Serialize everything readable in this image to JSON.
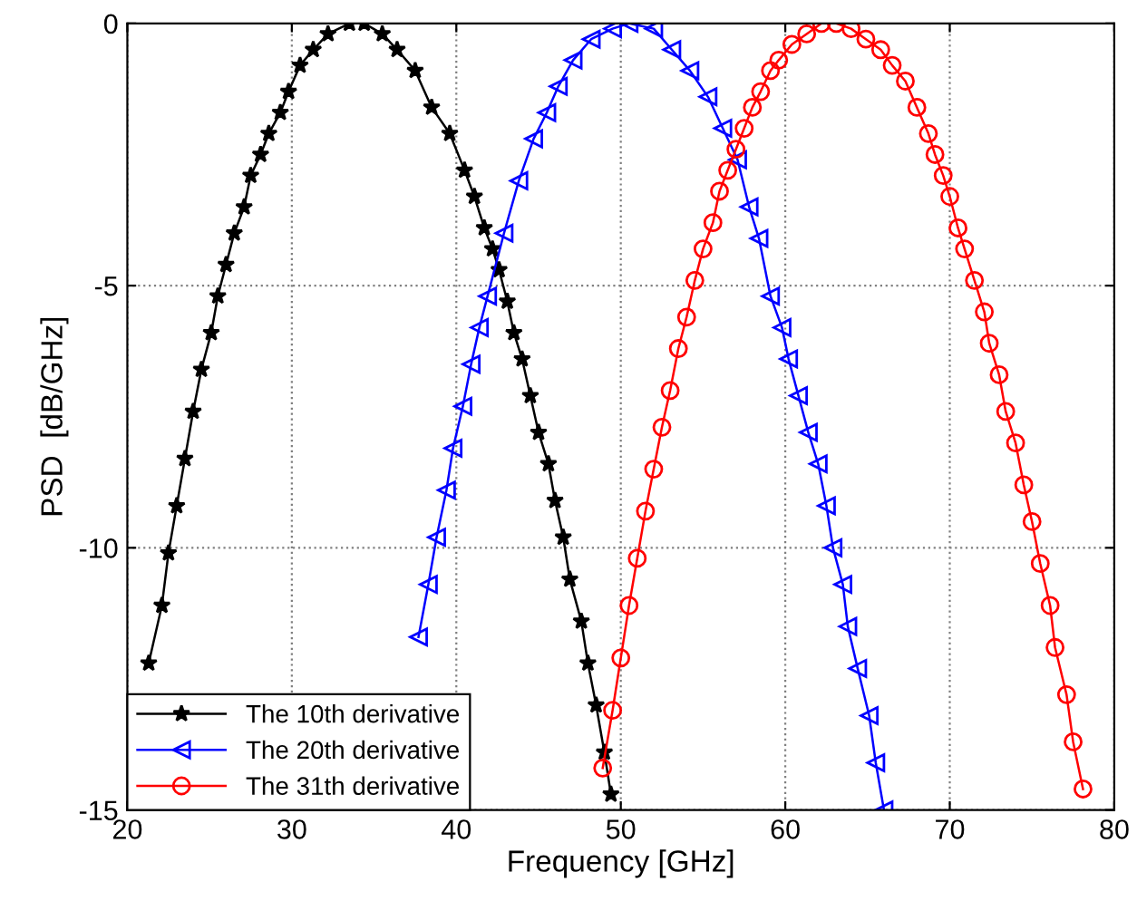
{
  "chart_data": {
    "type": "line",
    "xlabel": "Frequency [GHz]",
    "ylabel": "PSD  [dB/GHz]",
    "xlim": [
      20,
      80
    ],
    "xticks": [
      20,
      30,
      40,
      50,
      60,
      70,
      80
    ],
    "ylim": [
      -15,
      0
    ],
    "yticks": [
      -15,
      -10,
      -5,
      0
    ],
    "grid": true,
    "legend": "bottom left",
    "line_style": "solid",
    "series": [
      {
        "name": "The 10th derivative",
        "color": "#000000",
        "marker": "star",
        "x": [
          21.3,
          22.1,
          22.5,
          23.0,
          23.5,
          24.0,
          24.5,
          25.1,
          25.5,
          26.0,
          26.5,
          27.1,
          27.5,
          28.1,
          28.6,
          29.3,
          29.8,
          30.5,
          31.3,
          32.2,
          33.5,
          34.4,
          35.5,
          36.4,
          37.5,
          38.5,
          39.6,
          40.5,
          41.1,
          41.7,
          42.2,
          42.6,
          43.1,
          43.5,
          44.0,
          44.5,
          45.0,
          45.6,
          46.0,
          46.5,
          46.9,
          47.6,
          48.0,
          48.5,
          49.0,
          49.4
        ],
        "values": [
          -12.2,
          -11.1,
          -10.1,
          -9.2,
          -8.3,
          -7.4,
          -6.6,
          -5.9,
          -5.2,
          -4.6,
          -4.0,
          -3.5,
          -2.9,
          -2.5,
          -2.1,
          -1.7,
          -1.3,
          -0.8,
          -0.5,
          -0.2,
          0,
          0,
          -0.2,
          -0.5,
          -0.9,
          -1.6,
          -2.1,
          -2.8,
          -3.3,
          -3.9,
          -4.3,
          -4.7,
          -5.3,
          -5.9,
          -6.4,
          -7.1,
          -7.8,
          -8.4,
          -9.1,
          -9.8,
          -10.6,
          -11.4,
          -12.2,
          -13.0,
          -13.9,
          -14.7
        ]
      },
      {
        "name": "The 20th derivative",
        "color": "#0000ff",
        "marker": "triangle",
        "x": [
          37.7,
          38.3,
          38.8,
          39.4,
          39.8,
          40.4,
          40.9,
          41.4,
          41.9,
          42.9,
          43.8,
          44.7,
          45.5,
          46.2,
          47.1,
          48.2,
          49.5,
          50.5,
          52.0,
          53.1,
          54.2,
          55.3,
          56.2,
          57.1,
          57.8,
          58.4,
          59.1,
          59.8,
          60.2,
          60.8,
          61.4,
          62.0,
          62.5,
          62.9,
          63.5,
          63.8,
          64.4,
          65.1,
          65.5,
          66.0
        ],
        "values": [
          -11.7,
          -10.7,
          -9.8,
          -8.9,
          -8.1,
          -7.3,
          -6.5,
          -5.8,
          -5.2,
          -4.0,
          -3.0,
          -2.2,
          -1.7,
          -1.2,
          -0.7,
          -0.3,
          -0.1,
          0,
          -0.1,
          -0.5,
          -0.9,
          -1.4,
          -2.0,
          -2.6,
          -3.5,
          -4.1,
          -5.2,
          -5.8,
          -6.4,
          -7.1,
          -7.8,
          -8.4,
          -9.2,
          -10.0,
          -10.7,
          -11.5,
          -12.3,
          -13.2,
          -14.1,
          -15
        ]
      },
      {
        "name": "The 31th derivative",
        "color": "#ff0000",
        "marker": "circle",
        "x": [
          48.9,
          49.5,
          50.0,
          50.5,
          51.0,
          51.5,
          52.0,
          52.5,
          53.0,
          53.5,
          54.0,
          54.5,
          55.0,
          55.6,
          56.0,
          56.5,
          57.0,
          57.5,
          58.0,
          58.5,
          59.1,
          59.6,
          60.4,
          61.3,
          62.2,
          63.1,
          64.0,
          64.9,
          65.8,
          66.5,
          67.3,
          68.0,
          68.7,
          69.1,
          69.6,
          70.0,
          70.5,
          70.9,
          71.5,
          72.1,
          72.4,
          73.0,
          73.4,
          74.0,
          74.5,
          75.0,
          75.5,
          76.1,
          76.4,
          77.1,
          77.5,
          78.1
        ],
        "values": [
          -14.2,
          -13.1,
          -12.1,
          -11.1,
          -10.2,
          -9.3,
          -8.5,
          -7.7,
          -7.0,
          -6.2,
          -5.6,
          -4.9,
          -4.3,
          -3.8,
          -3.2,
          -2.8,
          -2.4,
          -2.0,
          -1.6,
          -1.3,
          -0.9,
          -0.7,
          -0.4,
          -0.2,
          0,
          0,
          -0.1,
          -0.3,
          -0.5,
          -0.8,
          -1.1,
          -1.6,
          -2.1,
          -2.5,
          -2.9,
          -3.3,
          -3.9,
          -4.3,
          -4.9,
          -5.5,
          -6.1,
          -6.7,
          -7.4,
          -8.0,
          -8.8,
          -9.5,
          -10.3,
          -11.1,
          -11.9,
          -12.8,
          -13.7,
          -14.6
        ]
      }
    ]
  }
}
